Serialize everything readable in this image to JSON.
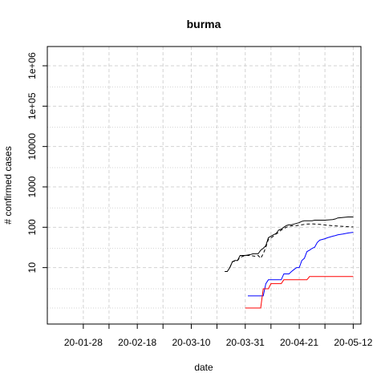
{
  "chart_data": {
    "type": "line",
    "title": "burma",
    "xlabel": "date",
    "ylabel": "# confirmed cases",
    "y_scale": "log",
    "ylim": [
      0.4,
      3000000
    ],
    "xlim": [
      "2020-01-14",
      "2020-05-15"
    ],
    "grid": true,
    "x_ticks": [
      {
        "date": "2020-01-28",
        "label": "20-01-28"
      },
      {
        "date": "2020-02-18",
        "label": "20-02-18"
      },
      {
        "date": "2020-03-10",
        "label": "20-03-10"
      },
      {
        "date": "2020-03-31",
        "label": "20-03-31"
      },
      {
        "date": "2020-04-21",
        "label": "20-04-21"
      },
      {
        "date": "2020-05-12",
        "label": "20-05-12"
      }
    ],
    "x_minor_ticks": [
      "2020-02-07",
      "2020-02-28",
      "2020-03-20",
      "2020-04-10",
      "2020-05-01"
    ],
    "y_ticks": [
      {
        "value": 10,
        "label": "10"
      },
      {
        "value": 100,
        "label": "100"
      },
      {
        "value": 1000,
        "label": "1000"
      },
      {
        "value": 10000,
        "label": "10000"
      },
      {
        "value": 100000,
        "label": "1e+05"
      },
      {
        "value": 1000000,
        "label": "1e+06"
      }
    ],
    "series": [
      {
        "color": "#000000",
        "dash": "solid",
        "points": [
          [
            "2020-03-23",
            8
          ],
          [
            "2020-03-24",
            8
          ],
          [
            "2020-03-25",
            10
          ],
          [
            "2020-03-26",
            14
          ],
          [
            "2020-03-27",
            15
          ],
          [
            "2020-03-28",
            15
          ],
          [
            "2020-03-29",
            20
          ],
          [
            "2020-03-31",
            20
          ],
          [
            "2020-04-02",
            21
          ],
          [
            "2020-04-03",
            22
          ],
          [
            "2020-04-05",
            22
          ],
          [
            "2020-04-06",
            27
          ],
          [
            "2020-04-07",
            30
          ],
          [
            "2020-04-08",
            35
          ],
          [
            "2020-04-09",
            55
          ],
          [
            "2020-04-10",
            60
          ],
          [
            "2020-04-11",
            65
          ],
          [
            "2020-04-12",
            70
          ],
          [
            "2020-04-13",
            85
          ],
          [
            "2020-04-14",
            90
          ],
          [
            "2020-04-15",
            100
          ],
          [
            "2020-04-16",
            110
          ],
          [
            "2020-04-17",
            115
          ],
          [
            "2020-04-18",
            115
          ],
          [
            "2020-04-19",
            120
          ],
          [
            "2020-04-20",
            125
          ],
          [
            "2020-04-21",
            130
          ],
          [
            "2020-04-22",
            140
          ],
          [
            "2020-04-23",
            145
          ],
          [
            "2020-04-24",
            145
          ],
          [
            "2020-04-26",
            145
          ],
          [
            "2020-04-27",
            150
          ],
          [
            "2020-05-01",
            150
          ],
          [
            "2020-05-04",
            155
          ],
          [
            "2020-05-05",
            160
          ],
          [
            "2020-05-06",
            170
          ],
          [
            "2020-05-08",
            175
          ],
          [
            "2020-05-10",
            180
          ],
          [
            "2020-05-12",
            180
          ]
        ]
      },
      {
        "color": "#000000",
        "dash": "dashed",
        "points": [
          [
            "2020-03-25",
            10
          ],
          [
            "2020-03-26",
            14
          ],
          [
            "2020-03-28",
            15
          ],
          [
            "2020-03-29",
            18
          ],
          [
            "2020-03-31",
            20
          ],
          [
            "2020-04-02",
            20
          ],
          [
            "2020-04-04",
            19
          ],
          [
            "2020-04-05",
            20
          ],
          [
            "2020-04-06",
            17
          ],
          [
            "2020-04-07",
            22
          ],
          [
            "2020-04-08",
            32
          ],
          [
            "2020-04-09",
            50
          ],
          [
            "2020-04-10",
            55
          ],
          [
            "2020-04-11",
            60
          ],
          [
            "2020-04-12",
            68
          ],
          [
            "2020-04-13",
            75
          ],
          [
            "2020-04-14",
            85
          ],
          [
            "2020-04-15",
            92
          ],
          [
            "2020-04-16",
            100
          ],
          [
            "2020-04-17",
            105
          ],
          [
            "2020-04-18",
            108
          ],
          [
            "2020-04-20",
            110
          ],
          [
            "2020-04-22",
            115
          ],
          [
            "2020-04-24",
            120
          ],
          [
            "2020-04-26",
            121
          ],
          [
            "2020-04-29",
            118
          ],
          [
            "2020-05-02",
            112
          ],
          [
            "2020-05-05",
            108
          ],
          [
            "2020-05-08",
            105
          ],
          [
            "2020-05-10",
            103
          ],
          [
            "2020-05-12",
            102
          ]
        ]
      },
      {
        "color": "#0000ff",
        "dash": "solid",
        "points": [
          [
            "2020-04-01",
            2
          ],
          [
            "2020-04-06",
            2
          ],
          [
            "2020-04-07",
            2
          ],
          [
            "2020-04-08",
            4
          ],
          [
            "2020-04-09",
            5
          ],
          [
            "2020-04-10",
            5
          ],
          [
            "2020-04-11",
            5
          ],
          [
            "2020-04-12",
            5
          ],
          [
            "2020-04-13",
            5
          ],
          [
            "2020-04-14",
            5
          ],
          [
            "2020-04-15",
            7
          ],
          [
            "2020-04-16",
            7
          ],
          [
            "2020-04-17",
            7
          ],
          [
            "2020-04-18",
            8
          ],
          [
            "2020-04-19",
            9
          ],
          [
            "2020-04-20",
            10
          ],
          [
            "2020-04-21",
            10
          ],
          [
            "2020-04-22",
            15
          ],
          [
            "2020-04-23",
            17
          ],
          [
            "2020-04-24",
            25
          ],
          [
            "2020-04-25",
            27
          ],
          [
            "2020-04-26",
            30
          ],
          [
            "2020-04-27",
            32
          ],
          [
            "2020-04-28",
            42
          ],
          [
            "2020-04-29",
            48
          ],
          [
            "2020-04-30",
            50
          ],
          [
            "2020-05-01",
            52
          ],
          [
            "2020-05-02",
            55
          ],
          [
            "2020-05-04",
            60
          ],
          [
            "2020-05-05",
            62
          ],
          [
            "2020-05-06",
            65
          ],
          [
            "2020-05-08",
            68
          ],
          [
            "2020-05-10",
            72
          ],
          [
            "2020-05-12",
            75
          ]
        ]
      },
      {
        "color": "#ff0000",
        "dash": "solid",
        "points": [
          [
            "2020-03-31",
            1
          ],
          [
            "2020-04-03",
            1
          ],
          [
            "2020-04-06",
            1
          ],
          [
            "2020-04-07",
            3
          ],
          [
            "2020-04-09",
            3
          ],
          [
            "2020-04-10",
            4
          ],
          [
            "2020-04-12",
            4
          ],
          [
            "2020-04-14",
            4
          ],
          [
            "2020-04-15",
            5
          ],
          [
            "2020-04-17",
            5
          ],
          [
            "2020-04-19",
            5
          ],
          [
            "2020-04-21",
            5
          ],
          [
            "2020-04-23",
            5
          ],
          [
            "2020-04-24",
            5
          ],
          [
            "2020-04-25",
            6
          ],
          [
            "2020-04-28",
            6
          ],
          [
            "2020-05-01",
            6
          ],
          [
            "2020-05-04",
            6
          ],
          [
            "2020-05-08",
            6
          ],
          [
            "2020-05-12",
            6
          ]
        ]
      }
    ]
  }
}
